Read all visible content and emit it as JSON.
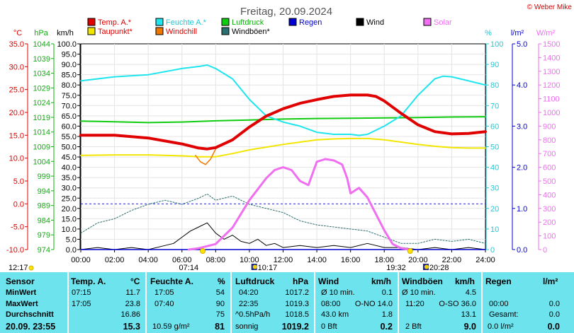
{
  "title": "Freitag, 20.09.2024",
  "copyright": "© Weber Mike",
  "colors": {
    "temp": "#e00000",
    "dew": "#f2e600",
    "humidity": "#1ee5ee",
    "windchill": "#f07800",
    "pressure": "#10cc10",
    "gust": "#2a6f6f",
    "rain": "#0000d0",
    "wind": "#000000",
    "solar": "#f06ef0",
    "panel": "#6de3ee"
  },
  "chart_data": {
    "type": "line",
    "x_ticks": [
      "00:00",
      "02:00",
      "04:00",
      "06:00",
      "08:00",
      "10:00",
      "12:00",
      "14:00",
      "16:00",
      "18:00",
      "20:00",
      "22:00",
      "24:00"
    ],
    "xlim": [
      "00:00",
      "24:00"
    ],
    "axes": {
      "temp": {
        "label": "°C",
        "ticks": [
          "35.0",
          "30.0",
          "25.0",
          "20.0",
          "15.0",
          "10.0",
          "5.0",
          "0.0",
          "-5.0",
          "-10.0"
        ],
        "ylim": [
          -10,
          35
        ]
      },
      "pressure": {
        "label": "hPa",
        "ticks": [
          "1044",
          "1039",
          "1034",
          "1029",
          "1024",
          "1019",
          "1014",
          "1009",
          "1004",
          "999",
          "994",
          "989",
          "984",
          "979",
          "974"
        ],
        "ylim": [
          974,
          1044
        ]
      },
      "wind": {
        "label": "km/h",
        "ticks": [
          "100.0",
          "95.0",
          "90.0",
          "85.0",
          "80.0",
          "75.0",
          "70.0",
          "65.0",
          "60.0",
          "55.0",
          "50.0",
          "45.0",
          "40.0",
          "35.0",
          "30.0",
          "25.0",
          "20.0",
          "15.0",
          "10.0",
          "5.0",
          "0.0"
        ],
        "ylim": [
          0,
          100
        ]
      },
      "humidity": {
        "label": "%",
        "ticks": [
          "100",
          "90",
          "80",
          "70",
          "60",
          "50",
          "40",
          "30",
          "20",
          "10",
          "0"
        ],
        "ylim": [
          0,
          100
        ]
      },
      "rain": {
        "label": "l/m²",
        "ticks": [
          "5.0",
          "4.0",
          "3.0",
          "2.0",
          "1.0",
          "0.0"
        ],
        "ylim": [
          0,
          5
        ]
      },
      "solar": {
        "label": "W/m²",
        "ticks": [
          "1500",
          "1400",
          "1300",
          "1200",
          "1100",
          "1000",
          "900",
          "800",
          "700",
          "600",
          "500",
          "400",
          "300",
          "200",
          "100",
          "0"
        ],
        "ylim": [
          0,
          1500
        ]
      }
    },
    "legend": [
      "Temp. A.*",
      "Feuchte A.*",
      "Luftdruck",
      "Regen",
      "Wind",
      "Solar",
      "Taupunkt*",
      "Windchill",
      "Windböen*"
    ],
    "series": [
      {
        "name": "Temp. A.*",
        "axis": "temp",
        "x": [
          0,
          2,
          4,
          6,
          7,
          7.5,
          8,
          9,
          10,
          11,
          12,
          13,
          14,
          15,
          16,
          16.5,
          17,
          17.5,
          18,
          19,
          20,
          21,
          22,
          23,
          24
        ],
        "values": [
          15.0,
          15.0,
          14.4,
          13.1,
          12.2,
          12.0,
          12.3,
          14.0,
          16.8,
          19.2,
          20.8,
          22.0,
          22.8,
          23.5,
          23.8,
          23.8,
          23.8,
          23.5,
          22.5,
          19.8,
          17.3,
          15.8,
          15.3,
          15.4,
          15.8
        ]
      },
      {
        "name": "Feuchte A.*",
        "axis": "humidity",
        "x": [
          0,
          2,
          4,
          6,
          7,
          7.5,
          8,
          9,
          10,
          11,
          12,
          13,
          14,
          15,
          16,
          16.5,
          17,
          18,
          19,
          20,
          21,
          21.5,
          22,
          23,
          24
        ],
        "values": [
          82,
          84,
          85,
          88,
          89,
          89.7,
          88,
          83,
          73,
          65,
          62,
          60,
          57,
          56,
          56,
          55.5,
          56,
          60,
          65,
          75,
          83,
          84.3,
          84,
          82,
          80
        ]
      },
      {
        "name": "Luftdruck",
        "axis": "pressure",
        "x": [
          0,
          2,
          4,
          6,
          8,
          10,
          12,
          14,
          16,
          18,
          20,
          22,
          24
        ],
        "values": [
          1017.7,
          1017.5,
          1017.2,
          1017.4,
          1017.8,
          1018.1,
          1018.4,
          1018.6,
          1018.7,
          1018.8,
          1018.9,
          1019.1,
          1019.2
        ]
      },
      {
        "name": "Taupunkt*",
        "axis": "temp",
        "x": [
          0,
          2,
          4,
          6,
          7,
          8,
          9,
          10,
          11,
          12,
          13,
          14,
          15,
          16,
          17,
          18,
          19,
          20,
          21,
          22,
          23,
          24
        ],
        "values": [
          10.6,
          10.7,
          10.7,
          10.5,
          10.3,
          10.3,
          11.0,
          11.8,
          12.4,
          13.0,
          13.5,
          14.0,
          14.2,
          14.3,
          14.3,
          14.0,
          13.5,
          13.0,
          12.6,
          12.3,
          12.2,
          12.2
        ]
      },
      {
        "name": "Windchill",
        "axis": "temp",
        "x": [
          6.8,
          7.1,
          7.4,
          7.7,
          8.0
        ],
        "values": [
          10.6,
          9.2,
          8.6,
          9.8,
          12.0
        ]
      },
      {
        "name": "Solar",
        "axis": "solar",
        "x": [
          6.4,
          7,
          8,
          9,
          10,
          11,
          11.5,
          12,
          12.5,
          13,
          13.5,
          14,
          14.5,
          15,
          15.5,
          15.8,
          16,
          16.5,
          17,
          17.5,
          18,
          18.5,
          19,
          19.5
        ],
        "values": [
          0,
          10,
          40,
          160,
          360,
          520,
          580,
          600,
          580,
          500,
          470,
          640,
          660,
          650,
          620,
          520,
          410,
          450,
          380,
          260,
          140,
          40,
          10,
          0
        ]
      },
      {
        "name": "Wind",
        "axis": "wind",
        "x": [
          0,
          1,
          2,
          3,
          4,
          5,
          5.5,
          6,
          6.5,
          7,
          7.5,
          8,
          8.5,
          9,
          9.5,
          10,
          10.5,
          11,
          11.5,
          12,
          13,
          14,
          15,
          16,
          17,
          18,
          19,
          20,
          21,
          22,
          23,
          24
        ],
        "values": [
          0,
          1,
          0,
          1,
          0,
          2,
          3,
          6,
          9,
          11,
          13,
          8,
          5,
          7,
          4,
          3,
          5,
          2,
          3,
          1,
          2,
          1,
          2,
          1,
          3,
          1,
          1,
          0,
          1,
          0,
          1,
          0
        ]
      },
      {
        "name": "Windböen*",
        "axis": "wind",
        "x": [
          0,
          1,
          2,
          3,
          4,
          5,
          6,
          7,
          7.5,
          8,
          9,
          10,
          11,
          12,
          13,
          14,
          15,
          16,
          17,
          18,
          19,
          20,
          21,
          22,
          23,
          24
        ],
        "values": [
          8,
          13,
          15,
          19,
          22,
          24,
          22,
          25,
          27,
          24,
          26,
          22,
          20,
          18,
          14,
          12,
          11,
          10,
          9,
          6,
          3,
          3,
          5,
          4,
          5,
          3
        ]
      },
      {
        "name": "Regen",
        "axis": "rain",
        "x": [
          0,
          24
        ],
        "values": [
          0,
          0
        ]
      }
    ],
    "reference_line": {
      "axis": "temp",
      "value": 0
    },
    "sun_markers": [
      {
        "time": "07:14",
        "kind": "sunrise"
      },
      {
        "time": "19:32",
        "kind": "sunset"
      }
    ],
    "moon_markers": [
      {
        "time": "10:17",
        "kind": "moonset"
      },
      {
        "time": "20:28",
        "kind": "moonrise"
      }
    ],
    "left_label": "12:17"
  },
  "table": {
    "sensor": {
      "head": "Sensor",
      "min": "MinWert",
      "max": "MaxWert",
      "avg": "Durchschnitt",
      "now": "20.09.  23:55"
    },
    "temp": {
      "head": "Temp. A.",
      "unit": "°C",
      "min_t": "07:15",
      "min_v": "11.7",
      "max_t": "17:05",
      "max_v": "23.8",
      "avg": "16.86",
      "now": "15.3"
    },
    "hum": {
      "head": "Feuchte A.",
      "unit": "%",
      "min_t": "17:05",
      "min_v": "54",
      "max_t": "07:40",
      "max_v": "90",
      "avg": "75",
      "now_abs": "10.59 g/m²",
      "now": "81"
    },
    "press": {
      "head": "Luftdruck",
      "unit": "hPa",
      "min_t": "04:20",
      "min_v": "1017.2",
      "max_t": "22:35",
      "max_v": "1019.3",
      "avg_l": "^0.5hPa/h",
      "avg": "1018.5",
      "now_l": "sonnig",
      "now": "1019.2"
    },
    "wind": {
      "head": "Wind",
      "unit": "km/h",
      "r1_l": "Ø 10 min.",
      "r1_v": "0.1",
      "r2_t": "08:00",
      "r2_d": "O-NO 14.0",
      "r3_l": "43.0 km",
      "r3_v": "1.8",
      "r4_l": "0 Bft",
      "r4_v": "0.2"
    },
    "gust": {
      "head": "Windböen",
      "unit": "km/h",
      "r1_l": "Ø 10 min.",
      "r1_v": "4.5",
      "r2_t": "11:20",
      "r2_d": "O-SO 36.0",
      "r3_v": "13.1",
      "r4_l": "2 Bft",
      "r4_v": "9.0"
    },
    "rain": {
      "head": "Regen",
      "unit": "l/m²",
      "r2_t": "00:00",
      "r2_v": "0.0",
      "r3_l": "Gesamt:",
      "r3_v": "0.0",
      "r4_l": "0.0 l/m²",
      "r4_v": "0.0"
    }
  }
}
